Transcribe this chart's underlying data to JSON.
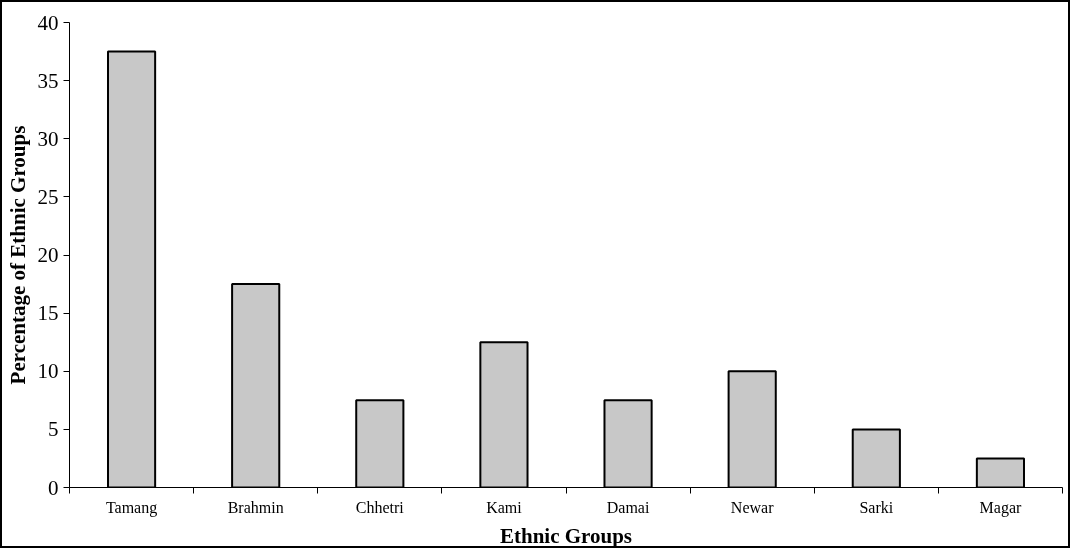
{
  "chart_data": {
    "type": "bar",
    "xlabel": "Ethnic Groups",
    "ylabel": "Percentage of Ethnic Groups",
    "categories": [
      "Tamang",
      "Brahmin",
      "Chhetri",
      "Kami",
      "Damai",
      "Newar",
      "Sarki",
      "Magar"
    ],
    "values": [
      37.5,
      17.5,
      7.5,
      12.5,
      7.5,
      10,
      5,
      2.5
    ],
    "color": "#c8c8c8",
    "ylim": [
      0,
      40
    ],
    "yticks": [
      0,
      5,
      10,
      15,
      20,
      25,
      30,
      35,
      40
    ],
    "grid": false
  }
}
